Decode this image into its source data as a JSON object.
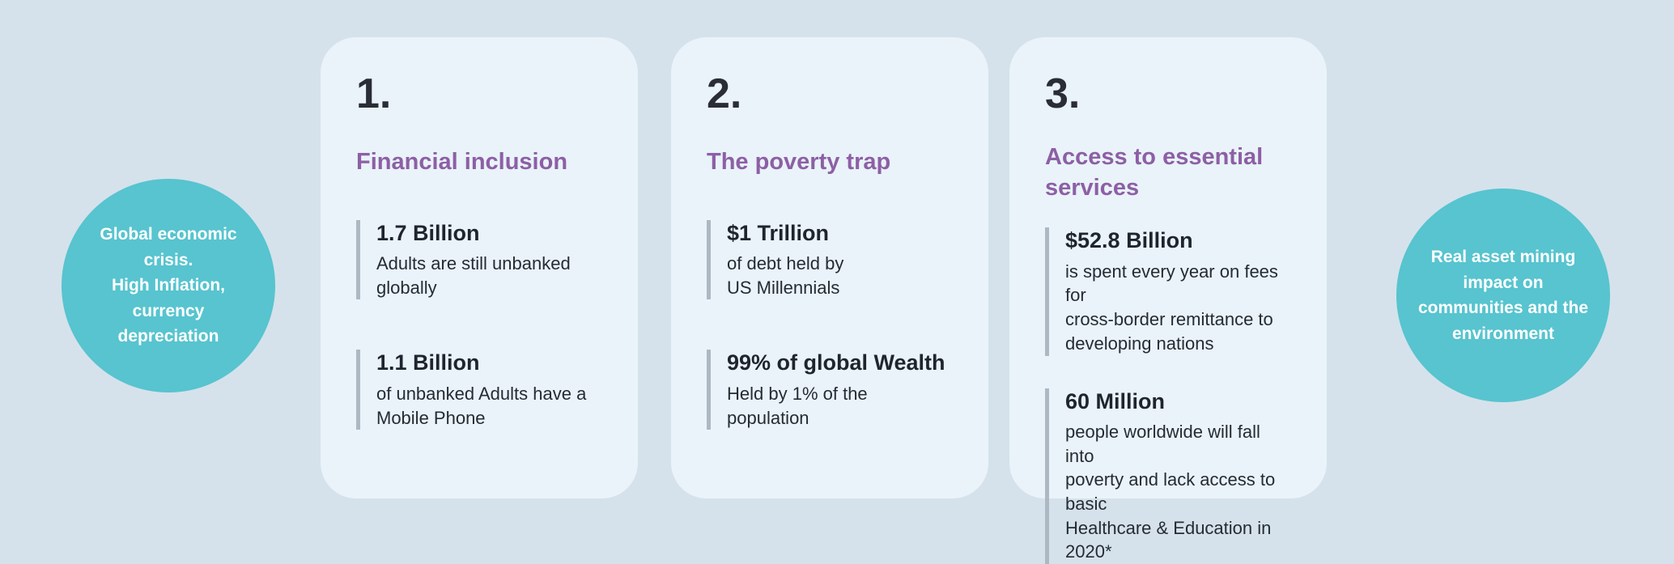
{
  "page": {
    "background_color": "#d5e2eb",
    "card_color": "#e9f3f9",
    "bubble_color": "#57c4cf",
    "title_color": "#8d5fa5",
    "dark_text_color": "#262b33",
    "stat_bar_color": "#aeb8c2"
  },
  "bubbles": {
    "left": {
      "text": "Global economic\ncrisis.\nHigh Inflation,\ncurrency\ndepreciation"
    },
    "right": {
      "text": "Real asset  mining\nimpact on\ncommunities and the\nenvironment"
    }
  },
  "cards": [
    {
      "number": "1.",
      "title": "Financial inclusion",
      "stats": [
        {
          "value": "1.7 Billion",
          "description": "Adults are still unbanked\nglobally"
        },
        {
          "value": "1.1 Billion",
          "description": "of unbanked Adults have a\nMobile Phone"
        }
      ]
    },
    {
      "number": "2.",
      "title": "The poverty trap",
      "stats": [
        {
          "value": "$1 Trillion",
          "description": "of debt held by\nUS Millennials"
        },
        {
          "value": "99% of global Wealth",
          "description": "Held by 1% of the\npopulation"
        }
      ]
    },
    {
      "number": "3.",
      "title": "Access to essential\nservices",
      "stats": [
        {
          "value": "$52.8 Billion",
          "description": "is spent every year on fees for\ncross-border remittance to\ndeveloping nations"
        },
        {
          "value": "60 Million",
          "description": "people worldwide will fall into\npoverty and lack access to basic\nHealthcare & Education in 2020*"
        }
      ]
    }
  ]
}
